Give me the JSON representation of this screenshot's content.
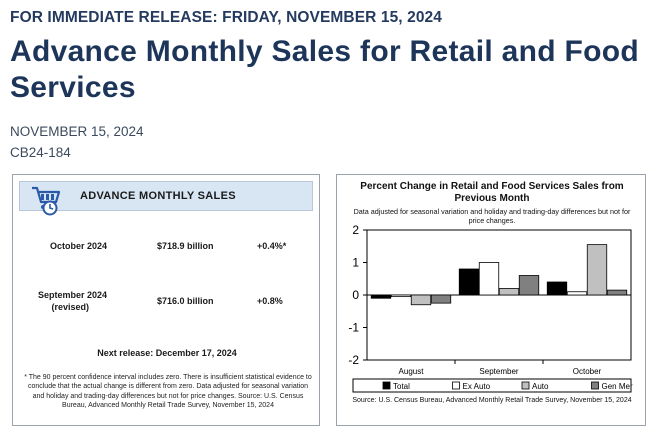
{
  "header": {
    "kicker": "FOR IMMEDIATE RELEASE: FRIDAY, NOVEMBER 15, 2024",
    "title": "Advance Monthly Sales for Retail and Food Services",
    "date": "NOVEMBER 15, 2024",
    "release_id": "CB24-184"
  },
  "summary": {
    "title": "ADVANCE MONTHLY SALES",
    "icon": "shopping-cart-clock-icon",
    "rows": [
      {
        "month": "October 2024",
        "value": "$718.9 billion",
        "pct": "+0.4%*"
      },
      {
        "month": "September 2024",
        "note": "(revised)",
        "value": "$716.0 billion",
        "pct": "+0.8%"
      }
    ],
    "next_release": "Next release: December 17, 2024",
    "footnote": "* The 90 percent confidence interval includes zero. There is insufficient statistical evidence to conclude that the actual change is different from zero. Data adjusted for seasonal variation and holiday and trading-day differences but not for price changes. Source: U.S. Census Bureau, Advanced Monthly Retail Trade Survey, November 15, 2024"
  },
  "chart_panel": {
    "title": "Percent Change in Retail and Food Services Sales from Previous Month",
    "subtitle": "Data adjusted for seasonal variation and holiday and trading-day differences but not for price changes.",
    "source": "Source: U.S. Census Bureau, Advanced Monthly Retail Trade Survey, November 15, 2024"
  },
  "chart_data": {
    "type": "bar",
    "categories": [
      "August",
      "September",
      "October"
    ],
    "series": [
      {
        "name": "Total",
        "color": "#000000",
        "values": [
          -0.1,
          0.8,
          0.4
        ]
      },
      {
        "name": "Ex Auto",
        "color": "#ffffff",
        "values": [
          -0.05,
          1.0,
          0.1
        ]
      },
      {
        "name": "Auto",
        "color": "#c0c0c0",
        "values": [
          -0.3,
          0.2,
          1.55
        ]
      },
      {
        "name": "Gen Mer",
        "color": "#808080",
        "values": [
          -0.25,
          0.6,
          0.15
        ]
      }
    ],
    "ylim": [
      -2,
      2
    ],
    "yticks": [
      "-2",
      "-1",
      "0",
      "1",
      "2"
    ],
    "legend": "bottom",
    "grid": false
  }
}
